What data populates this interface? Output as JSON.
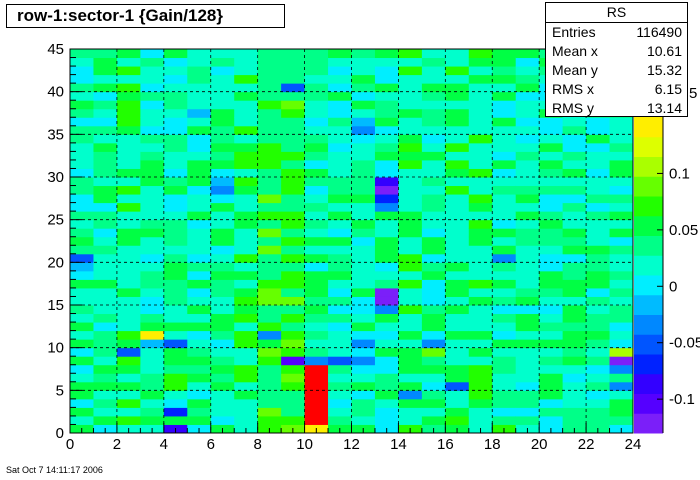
{
  "title": "row-1:sector-1 {Gain/128}",
  "stats": {
    "name": "RS",
    "rows": [
      {
        "label": "Entries",
        "value": "116490"
      },
      {
        "label": "Mean x",
        "value": "10.61"
      },
      {
        "label": "Mean y",
        "value": "15.32"
      },
      {
        "label": "RMS x",
        "value": "6.15"
      },
      {
        "label": "RMS y",
        "value": "13.14"
      }
    ]
  },
  "timestamp": "Sat Oct  7 14:11:17 2006",
  "chart_data": {
    "type": "heatmap",
    "title": "row-1:sector-1 {Gain/128}",
    "xlabel": "",
    "ylabel": "",
    "xlim": [
      0,
      24
    ],
    "ylim": [
      0,
      45
    ],
    "grid": true,
    "x_bins": 24,
    "y_bins": 45,
    "x_ticks": [
      "0",
      "2",
      "4",
      "6",
      "8",
      "10",
      "12",
      "14",
      "16",
      "18",
      "20",
      "22",
      "24"
    ],
    "y_ticks": [
      "0",
      "5",
      "10",
      "15",
      "20",
      "25",
      "30",
      "35",
      "40",
      "45"
    ],
    "colorbar": {
      "range": [
        -0.13,
        0.15
      ],
      "tick_values": [
        -0.1,
        -0.05,
        0,
        0.05,
        0.1
      ],
      "tick_labels": [
        "-0.1",
        "-0.05",
        "0",
        "0.05",
        "0.1"
      ],
      "top_label": "5",
      "colors": [
        "#7b1ff9",
        "#5500ff",
        "#3300ff",
        "#0022ff",
        "#0055ff",
        "#0088ff",
        "#00bbff",
        "#00eeff",
        "#00ffcc",
        "#00ff88",
        "#00ff44",
        "#22ff00",
        "#66ff00",
        "#aaff00",
        "#ddff00",
        "#ffee00"
      ]
    },
    "base_value": 0.01,
    "notable_cells": [
      {
        "x": 10,
        "y": 0,
        "value": 0.15
      },
      {
        "x": 10,
        "y": 1,
        "value": 0.5
      },
      {
        "x": 10,
        "y": 2,
        "value": 0.5
      },
      {
        "x": 10,
        "y": 3,
        "value": 0.5
      },
      {
        "x": 10,
        "y": 4,
        "value": 0.4
      },
      {
        "x": 10,
        "y": 5,
        "value": 0.4
      },
      {
        "x": 10,
        "y": 6,
        "value": 0.4
      },
      {
        "x": 10,
        "y": 7,
        "value": 0.4
      },
      {
        "x": 10,
        "y": 8,
        "value": -0.03
      },
      {
        "x": 9,
        "y": 8,
        "value": -0.11
      },
      {
        "x": 11,
        "y": 8,
        "value": -0.06
      },
      {
        "x": 8,
        "y": 8,
        "value": 0.07
      },
      {
        "x": 8,
        "y": 9,
        "value": 0.09
      },
      {
        "x": 8,
        "y": 10,
        "value": 0.05
      },
      {
        "x": 8,
        "y": 11,
        "value": -0.04
      },
      {
        "x": 3,
        "y": 11,
        "value": 0.14
      },
      {
        "x": 3,
        "y": 10,
        "value": -0.02
      },
      {
        "x": 4,
        "y": 10,
        "value": -0.06
      },
      {
        "x": 2,
        "y": 9,
        "value": -0.05
      },
      {
        "x": 4,
        "y": 6,
        "value": 0.07
      },
      {
        "x": 4,
        "y": 5,
        "value": 0.07
      },
      {
        "x": 4,
        "y": 2,
        "value": -0.07
      },
      {
        "x": 4,
        "y": 0,
        "value": -0.08
      },
      {
        "x": 23,
        "y": 9,
        "value": 0.1
      },
      {
        "x": 23,
        "y": 8,
        "value": -0.12
      },
      {
        "x": 23,
        "y": 7,
        "value": -0.04
      },
      {
        "x": 23,
        "y": 5,
        "value": -0.04
      },
      {
        "x": 23,
        "y": 6,
        "value": 0.04
      },
      {
        "x": 15,
        "y": 10,
        "value": -0.03
      },
      {
        "x": 15,
        "y": 9,
        "value": 0.08
      },
      {
        "x": 16,
        "y": 5,
        "value": -0.05
      },
      {
        "x": 14,
        "y": 4,
        "value": -0.04
      },
      {
        "x": 13,
        "y": 15,
        "value": -0.14
      },
      {
        "x": 13,
        "y": 16,
        "value": -0.14
      },
      {
        "x": 13,
        "y": 14,
        "value": -0.04
      },
      {
        "x": 13,
        "y": 29,
        "value": -0.08
      },
      {
        "x": 13,
        "y": 28,
        "value": -0.17
      },
      {
        "x": 13,
        "y": 27,
        "value": -0.07
      },
      {
        "x": 13,
        "y": 26,
        "value": -0.03
      },
      {
        "x": 9,
        "y": 40,
        "value": -0.05
      },
      {
        "x": 0,
        "y": 20,
        "value": -0.05
      },
      {
        "x": 0,
        "y": 19,
        "value": -0.02
      },
      {
        "x": 18,
        "y": 20,
        "value": -0.04
      },
      {
        "x": 5,
        "y": 37,
        "value": -0.02
      },
      {
        "x": 6,
        "y": 28,
        "value": -0.04
      },
      {
        "x": 6,
        "y": 29,
        "value": -0.02
      },
      {
        "x": 12,
        "y": 35,
        "value": -0.03
      },
      {
        "x": 12,
        "y": 36,
        "value": -0.02
      },
      {
        "x": 18,
        "y": 0,
        "value": 0.07
      },
      {
        "x": 12,
        "y": 8,
        "value": -0.04
      },
      {
        "x": 12,
        "y": 10,
        "value": -0.03
      },
      {
        "x": 13,
        "y": 9,
        "value": 0.06
      }
    ]
  }
}
